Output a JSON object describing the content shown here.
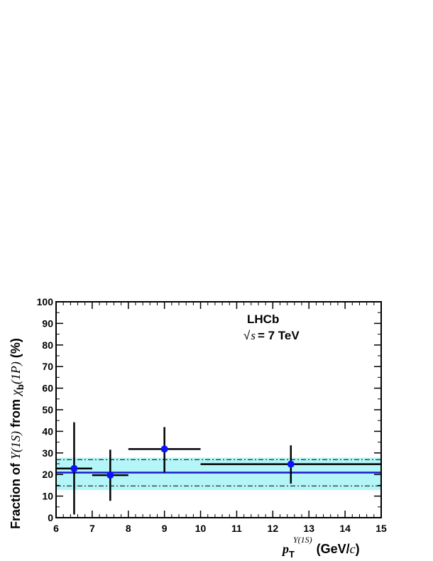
{
  "chart_data": {
    "type": "scatter",
    "experiment": "LHCb",
    "energy_label": "= 7 TeV",
    "sqrt_symbol": "√",
    "energy_var": "s",
    "xlabel": {
      "var": "p",
      "sub": "T",
      "sup": "Υ(1S)",
      "unit_open": "(GeV/",
      "unit_c": "c",
      "unit_close": ")"
    },
    "ylabel": {
      "pre": "Fraction of ",
      "ups": "Υ(1S)",
      "mid": " from ",
      "chi": "χ",
      "chi_sub": "b",
      "state": "(1P)",
      "post": " (%)"
    },
    "xlim": [
      6,
      15
    ],
    "ylim": [
      0,
      100
    ],
    "xticks": [
      6,
      7,
      8,
      9,
      10,
      11,
      12,
      13,
      14,
      15
    ],
    "yticks": [
      0,
      10,
      20,
      30,
      40,
      50,
      60,
      70,
      80,
      90,
      100
    ],
    "points": [
      {
        "x": 6.5,
        "xerr": 0.5,
        "y": 22.8,
        "ylow": 1.5,
        "yhigh": 44.2
      },
      {
        "x": 7.5,
        "xerr": 0.5,
        "y": 19.7,
        "ylow": 7.8,
        "yhigh": 31.5
      },
      {
        "x": 9.0,
        "xerr": 1.0,
        "y": 31.8,
        "ylow": 21.0,
        "yhigh": 42.0
      },
      {
        "x": 12.5,
        "xerr": 2.5,
        "y": 24.8,
        "ylow": 15.8,
        "yhigh": 33.5
      }
    ],
    "fit": {
      "value": 20.9,
      "low": 14.7,
      "high": 26.9,
      "band_low": 12.8,
      "band_high": 27.8
    },
    "colors": {
      "marker": "#0a14ff",
      "fit_line": "#1a1acc",
      "band": "#b4f5f8",
      "errors": "#000000",
      "axes": "#000000"
    }
  }
}
